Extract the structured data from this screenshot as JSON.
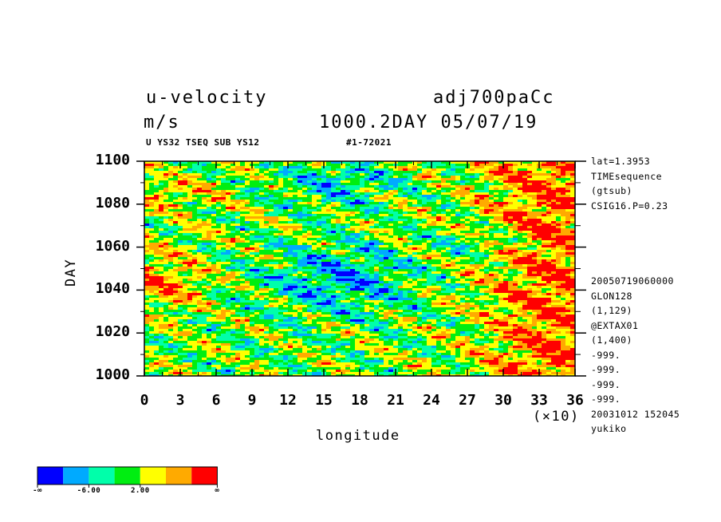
{
  "header": {
    "title_left": "u-velocity",
    "title_right": "adj700paCc",
    "units": "m/s",
    "subtitle_right": "1000.2DAY 05/07/19",
    "small_left": "U YS32 TSEQ SUB YS12",
    "small_right": "#1-72021"
  },
  "side_info": {
    "top": [
      "lat=1.3953",
      "TIMEsequence",
      "(gtsub)",
      "CSIG16.P=0.23"
    ],
    "bottom": [
      "20050719060000",
      "GLON128",
      "(1,129)",
      "@EXTAX01",
      "(1,400)",
      "-999.",
      "-999.",
      "-999.",
      "-999.",
      "20031012 152045",
      "yukiko"
    ]
  },
  "colorbar": {
    "colors": [
      "#0000ff",
      "#00aaff",
      "#00ffaa",
      "#00ee11",
      "#ffff00",
      "#ffaa00",
      "#ff0000"
    ],
    "labels": [
      "-∞",
      "-6.00",
      "2.00",
      "∞"
    ]
  },
  "chart_data": {
    "type": "heatmap",
    "title": "u-velocity",
    "xlabel": "longitude",
    "ylabel": "DAY",
    "x_multiplier": "(×10)",
    "xlim": [
      0,
      36
    ],
    "ylim": [
      1000,
      1100
    ],
    "x_ticks": [
      0,
      3,
      6,
      9,
      12,
      15,
      18,
      21,
      24,
      27,
      30,
      33,
      36
    ],
    "y_ticks": [
      1000,
      1020,
      1040,
      1060,
      1080,
      1100
    ],
    "color_levels": [
      "-∞",
      "-6.00",
      "2.00",
      "∞"
    ]
  }
}
